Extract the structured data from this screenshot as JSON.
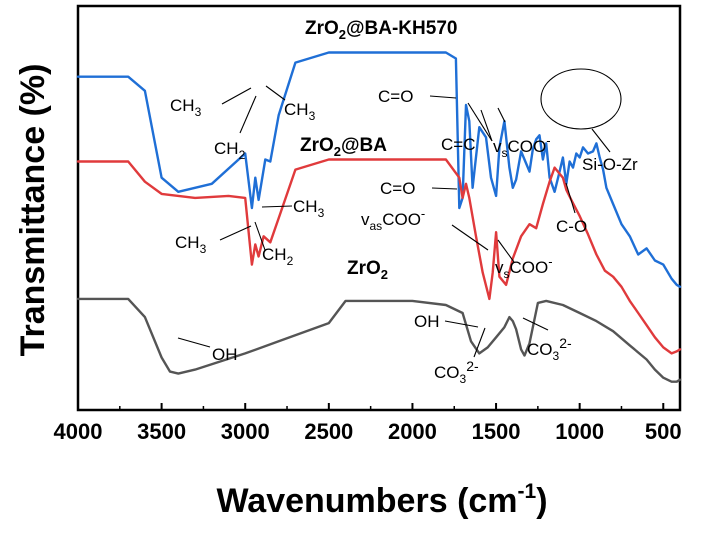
{
  "chart_data": {
    "type": "line",
    "title": "",
    "xlabel": "Wavenumbers",
    "xlabel_unit": "(cm",
    "xlabel_unit_exp": "-1",
    "xlabel_unit_close": ")",
    "ylabel": "Transmittance (%)",
    "xlim": [
      4000,
      400
    ],
    "x_reversed": true,
    "xticks": [
      4000,
      3500,
      3000,
      2500,
      2000,
      1500,
      1000,
      500
    ],
    "ytick_labels": false,
    "grid": false,
    "legend": "none",
    "colors": {
      "zrba_kh570": "#1f6fd6",
      "zrba": "#e03a3c",
      "zro2": "#555555"
    },
    "series": [
      {
        "name": "ZrO2@BA-KH570",
        "color": "#1f6fd6",
        "x": [
          4000,
          3700,
          3600,
          3500,
          3400,
          3200,
          3000,
          2960,
          2940,
          2920,
          2880,
          2850,
          2800,
          2700,
          2500,
          2000,
          1800,
          1740,
          1720,
          1700,
          1680,
          1660,
          1640,
          1600,
          1560,
          1530,
          1500,
          1480,
          1450,
          1420,
          1400,
          1380,
          1350,
          1320,
          1300,
          1280,
          1260,
          1240,
          1220,
          1200,
          1180,
          1150,
          1120,
          1100,
          1080,
          1060,
          1040,
          1020,
          1000,
          980,
          950,
          920,
          900,
          880,
          860,
          840,
          800,
          750,
          700,
          650,
          600,
          550,
          500,
          450,
          420,
          400
        ],
        "y": [
          16.5,
          16.5,
          15.8,
          11.5,
          10.8,
          11.2,
          12.7,
          10.0,
          11.5,
          10.4,
          12.4,
          12.3,
          14.6,
          17.2,
          17.7,
          17.7,
          17.7,
          17.4,
          10.0,
          10.5,
          15.1,
          14.3,
          11.0,
          14.0,
          13.5,
          11.5,
          10.6,
          13.0,
          14.3,
          12.0,
          11.0,
          11.4,
          12.8,
          12.2,
          11.8,
          12.9,
          13.4,
          13.6,
          12.4,
          13.2,
          11.5,
          10.8,
          11.8,
          12.5,
          11.2,
          12.3,
          12.0,
          12.7,
          12.5,
          13.0,
          12.7,
          12.8,
          13.2,
          12.5,
          11.9,
          11.0,
          10.2,
          9.2,
          8.6,
          7.7,
          8.0,
          7.4,
          7.2,
          6.5,
          6.2,
          6.1
        ]
      },
      {
        "name": "ZrO2@BA",
        "color": "#e03a3c",
        "x": [
          4000,
          3700,
          3600,
          3500,
          3300,
          3100,
          3000,
          2960,
          2940,
          2920,
          2890,
          2850,
          2800,
          2700,
          2500,
          2000,
          1800,
          1720,
          1700,
          1680,
          1660,
          1620,
          1580,
          1540,
          1520,
          1500,
          1480,
          1460,
          1440,
          1400,
          1350,
          1300,
          1260,
          1220,
          1180,
          1150,
          1120,
          1100,
          1080,
          1050,
          1000,
          950,
          900,
          850,
          800,
          750,
          700,
          650,
          600,
          550,
          500,
          450,
          420,
          400
        ],
        "y": [
          12.3,
          12.3,
          11.3,
          10.7,
          10.5,
          10.6,
          10.5,
          7.2,
          8.2,
          7.6,
          8.6,
          8.3,
          9.5,
          11.9,
          12.4,
          12.4,
          12.4,
          11.5,
          10.5,
          11.2,
          10.5,
          8.6,
          6.8,
          5.5,
          6.8,
          8.8,
          6.6,
          6.4,
          6.2,
          7.5,
          8.6,
          9.2,
          9.0,
          10.2,
          11.3,
          12.0,
          11.7,
          11.5,
          10.9,
          10.4,
          9.6,
          8.7,
          7.7,
          6.9,
          6.6,
          6.1,
          5.4,
          4.8,
          4.2,
          3.6,
          3.1,
          2.8,
          2.9,
          3.0
        ]
      },
      {
        "name": "ZrO2",
        "color": "#555555",
        "x": [
          4000,
          3700,
          3600,
          3500,
          3450,
          3400,
          3300,
          3000,
          2800,
          2500,
          2400,
          2000,
          1800,
          1700,
          1650,
          1600,
          1550,
          1500,
          1450,
          1420,
          1400,
          1380,
          1350,
          1330,
          1300,
          1250,
          1200,
          1100,
          1000,
          900,
          800,
          700,
          600,
          550,
          500,
          450,
          420,
          400
        ],
        "y": [
          5.5,
          5.5,
          4.6,
          2.6,
          1.9,
          1.8,
          2.0,
          2.8,
          3.4,
          4.3,
          5.4,
          5.4,
          5.2,
          4.8,
          3.4,
          2.8,
          3.1,
          3.6,
          4.1,
          4.6,
          4.4,
          4.0,
          3.0,
          2.7,
          3.3,
          5.3,
          5.4,
          5.2,
          4.8,
          4.4,
          3.9,
          3.2,
          2.5,
          2.0,
          1.6,
          1.4,
          1.4,
          1.5
        ]
      }
    ],
    "series_labels": [
      {
        "main": "ZrO",
        "sub": "2",
        "rest": "@BA-KH570"
      },
      {
        "main": "ZrO",
        "sub": "2",
        "rest": "@BA"
      },
      {
        "main": "ZrO",
        "sub": "2",
        "rest": ""
      }
    ],
    "annotations": {
      "blue_ch3_left": "CH",
      "blue_ch3_left_sub": "3",
      "blue_ch2": "CH",
      "blue_ch2_sub": "2",
      "blue_ch3_right": "CH",
      "blue_ch3_right_sub": "3",
      "blue_co": "C=O",
      "blue_cc": "C=C",
      "blue_vscoo_main": "v",
      "blue_vscoo_sub": "s",
      "blue_vscoo_rest": "COO",
      "blue_vscoo_sup": "-",
      "blue_sioz": "Si-O-Zr",
      "red_ch3_right": "CH",
      "red_ch3_right_sub": "3",
      "red_ch3_left": "CH",
      "red_ch3_left_sub": "3",
      "red_ch2": "CH",
      "red_ch2_sub": "2",
      "red_co": "C=O",
      "red_vascoo_main": "v",
      "red_vascoo_sub": "as",
      "red_vascoo_rest": "COO",
      "red_vascoo_sup": "-",
      "red_vscoo_main": "v",
      "red_vscoo_sub": "s",
      "red_vscoo_rest": "COO",
      "red_vscoo_sup": "-",
      "red_c_o": "C-O",
      "gray_oh_left": "OH",
      "gray_oh_right": "OH",
      "gray_co3_left_main": "CO",
      "gray_co3_left_sub": "3",
      "gray_co3_left_sup": "2-",
      "gray_co3_right_main": "CO",
      "gray_co3_right_sub": "3",
      "gray_co3_right_sup": "2-"
    }
  }
}
